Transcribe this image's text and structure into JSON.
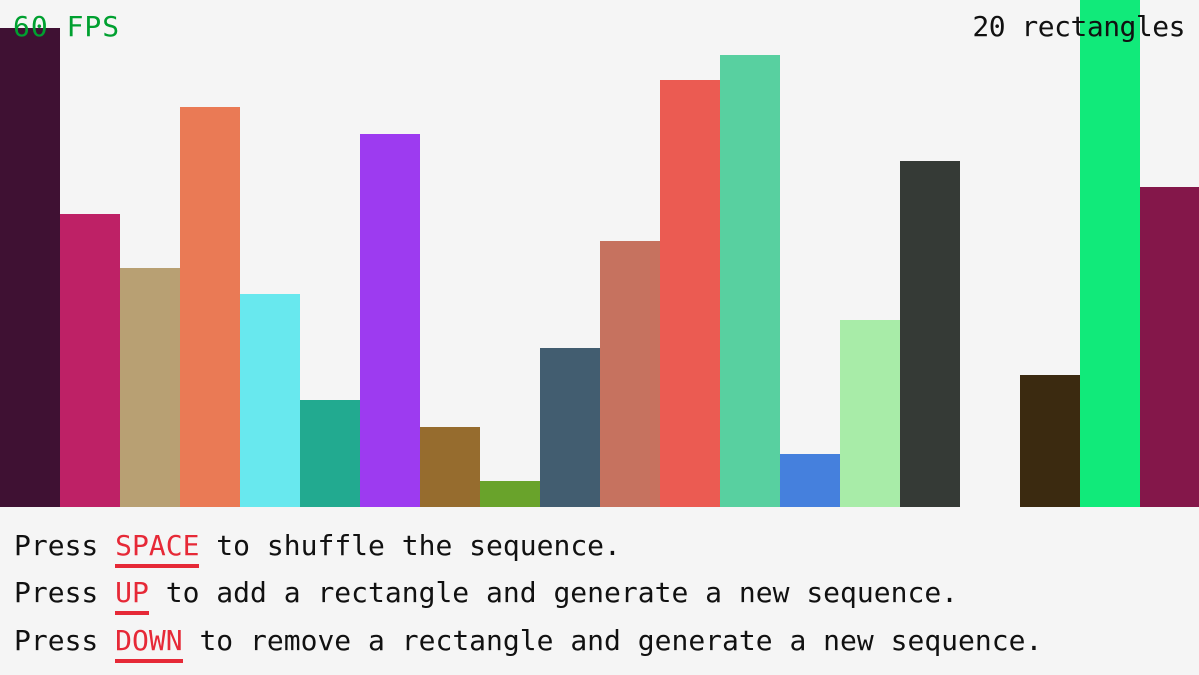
{
  "hud": {
    "fps": "60 FPS",
    "rect_count": "20 rectangles"
  },
  "colors": {
    "fps": "#00a030",
    "key": "#e62937",
    "text": "#111111",
    "background": "#f5f5f5"
  },
  "rectangles": [
    {
      "value": 479,
      "color": "#3f1133"
    },
    {
      "value": 293,
      "color": "#be2166"
    },
    {
      "value": 239,
      "color": "#b8a073"
    },
    {
      "value": 400,
      "color": "#ea7a55"
    },
    {
      "value": 213,
      "color": "#68e8ee"
    },
    {
      "value": 107,
      "color": "#22aa90"
    },
    {
      "value": 373,
      "color": "#9d3bf0"
    },
    {
      "value": 80,
      "color": "#966c2e"
    },
    {
      "value": 26,
      "color": "#69a32b"
    },
    {
      "value": 159,
      "color": "#425d70"
    },
    {
      "value": 266,
      "color": "#c6725f"
    },
    {
      "value": 427,
      "color": "#eb5b52"
    },
    {
      "value": 452,
      "color": "#58d0a0"
    },
    {
      "value": 53,
      "color": "#4580dd"
    },
    {
      "value": 187,
      "color": "#a8eca8"
    },
    {
      "value": 346,
      "color": "#353a36"
    },
    {
      "value": 0,
      "color": "#f5f5f5"
    },
    {
      "value": 132,
      "color": "#3b2a10"
    },
    {
      "value": 507,
      "color": "#11ea7a"
    },
    {
      "value": 320,
      "color": "#84174a"
    }
  ],
  "instructions": [
    {
      "pre": "Press ",
      "key": "SPACE",
      "post": " to shuffle the sequence."
    },
    {
      "pre": "Press ",
      "key": "UP",
      "post": " to add a rectangle and generate a new sequence."
    },
    {
      "pre": "Press ",
      "key": "DOWN",
      "post": " to remove a rectangle and generate a new sequence."
    }
  ]
}
